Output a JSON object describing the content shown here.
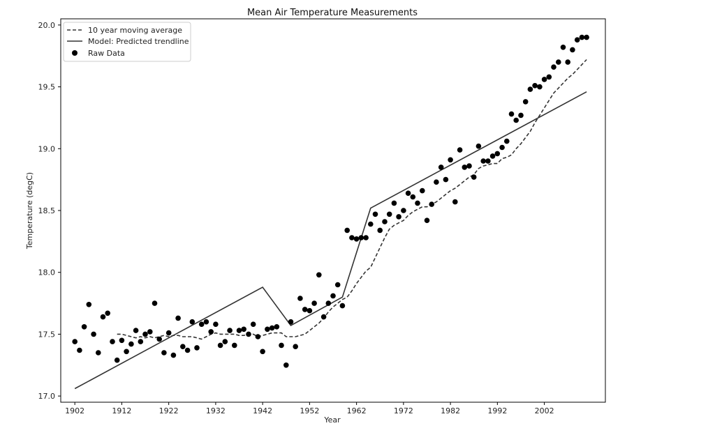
{
  "chart_data": {
    "type": "line",
    "title": "Mean Air Temperature Measurements",
    "xlabel": "Year",
    "ylabel": "Temperature (degC)",
    "xlim": [
      1899,
      2015
    ],
    "ylim": [
      16.95,
      20.05
    ],
    "xticks": [
      1902,
      1912,
      1922,
      1932,
      1942,
      1952,
      1962,
      1972,
      1982,
      1992,
      2002
    ],
    "yticks": [
      17.0,
      17.5,
      18.0,
      18.5,
      19.0,
      19.5,
      20.0
    ],
    "ytick_labels": [
      "17.0",
      "17.5",
      "18.0",
      "18.5",
      "19.0",
      "19.5",
      "20.0"
    ],
    "grid": false,
    "legend_position": "top-left",
    "colors": {
      "lines": "#333333",
      "points": "#000000",
      "axes": "#000000"
    },
    "series": [
      {
        "name": "10 year moving average",
        "style": "dashed",
        "x": [
          1911,
          1912,
          1913,
          1914,
          1915,
          1916,
          1917,
          1918,
          1919,
          1920,
          1921,
          1922,
          1923,
          1924,
          1925,
          1926,
          1927,
          1928,
          1929,
          1930,
          1931,
          1932,
          1933,
          1934,
          1935,
          1936,
          1937,
          1938,
          1939,
          1940,
          1941,
          1942,
          1943,
          1944,
          1945,
          1946,
          1947,
          1948,
          1949,
          1950,
          1951,
          1952,
          1953,
          1954,
          1955,
          1956,
          1957,
          1958,
          1959,
          1960,
          1961,
          1962,
          1963,
          1964,
          1965,
          1966,
          1967,
          1968,
          1969,
          1970,
          1971,
          1972,
          1973,
          1974,
          1975,
          1976,
          1977,
          1978,
          1979,
          1980,
          1981,
          1982,
          1983,
          1984,
          1985,
          1986,
          1987,
          1988,
          1989,
          1990,
          1991,
          1992,
          1993,
          1994,
          1995,
          1996,
          1997,
          1998,
          1999,
          2000,
          2001,
          2002,
          2003,
          2004,
          2005,
          2006,
          2007,
          2008,
          2009,
          2010,
          2011
        ],
        "y": [
          17.5,
          17.5,
          17.49,
          17.48,
          17.47,
          17.48,
          17.47,
          17.48,
          17.47,
          17.48,
          17.49,
          17.48,
          17.49,
          17.49,
          17.48,
          17.48,
          17.48,
          17.47,
          17.46,
          17.48,
          17.5,
          17.51,
          17.5,
          17.5,
          17.5,
          17.5,
          17.49,
          17.49,
          17.5,
          17.5,
          17.48,
          17.49,
          17.5,
          17.51,
          17.51,
          17.51,
          17.48,
          17.48,
          17.48,
          17.49,
          17.5,
          17.53,
          17.56,
          17.59,
          17.63,
          17.68,
          17.72,
          17.75,
          17.78,
          17.8,
          17.85,
          17.91,
          17.96,
          18.01,
          18.04,
          18.12,
          18.2,
          18.28,
          18.35,
          18.38,
          18.4,
          18.42,
          18.46,
          18.49,
          18.51,
          18.53,
          18.53,
          18.55,
          18.57,
          18.6,
          18.63,
          18.66,
          18.68,
          18.71,
          18.74,
          18.77,
          18.79,
          18.84,
          18.86,
          18.87,
          18.88,
          18.88,
          18.92,
          18.93,
          18.95,
          19.0,
          19.04,
          19.09,
          19.14,
          19.21,
          19.27,
          19.33,
          19.39,
          19.45,
          19.49,
          19.53,
          19.57,
          19.6,
          19.64,
          19.68,
          19.72
        ]
      },
      {
        "name": "Model: Predicted trendline",
        "style": "solid",
        "x": [
          1902,
          1942,
          1948,
          1959,
          1965,
          2011
        ],
        "y": [
          17.06,
          17.88,
          17.57,
          17.8,
          18.52,
          19.46
        ]
      },
      {
        "name": "Raw Data",
        "style": "points",
        "x": [
          1902,
          1903,
          1904,
          1905,
          1906,
          1907,
          1908,
          1909,
          1910,
          1911,
          1912,
          1913,
          1914,
          1915,
          1916,
          1917,
          1918,
          1919,
          1920,
          1921,
          1922,
          1923,
          1924,
          1925,
          1926,
          1927,
          1928,
          1929,
          1930,
          1931,
          1932,
          1933,
          1934,
          1935,
          1936,
          1937,
          1938,
          1939,
          1940,
          1941,
          1942,
          1943,
          1944,
          1945,
          1946,
          1947,
          1948,
          1949,
          1950,
          1951,
          1952,
          1953,
          1954,
          1955,
          1956,
          1957,
          1958,
          1959,
          1960,
          1961,
          1962,
          1963,
          1964,
          1965,
          1966,
          1967,
          1968,
          1969,
          1970,
          1971,
          1972,
          1973,
          1974,
          1975,
          1976,
          1977,
          1978,
          1979,
          1980,
          1981,
          1982,
          1983,
          1984,
          1985,
          1986,
          1987,
          1988,
          1989,
          1990,
          1991,
          1992,
          1993,
          1994,
          1995,
          1996,
          1997,
          1998,
          1999,
          2000,
          2001,
          2002,
          2003,
          2004,
          2005,
          2006,
          2007,
          2008,
          2009,
          2010,
          2011
        ],
        "y": [
          17.44,
          17.37,
          17.56,
          17.74,
          17.5,
          17.35,
          17.64,
          17.67,
          17.44,
          17.29,
          17.45,
          17.36,
          17.42,
          17.53,
          17.44,
          17.5,
          17.52,
          17.75,
          17.46,
          17.35,
          17.51,
          17.33,
          17.63,
          17.4,
          17.37,
          17.6,
          17.39,
          17.58,
          17.6,
          17.52,
          17.58,
          17.41,
          17.44,
          17.53,
          17.41,
          17.53,
          17.54,
          17.5,
          17.58,
          17.48,
          17.36,
          17.54,
          17.55,
          17.56,
          17.41,
          17.25,
          17.6,
          17.4,
          17.79,
          17.7,
          17.69,
          17.75,
          17.98,
          17.64,
          17.75,
          17.81,
          17.9,
          17.73,
          18.34,
          18.28,
          18.27,
          18.28,
          18.28,
          18.39,
          18.47,
          18.34,
          18.41,
          18.47,
          18.56,
          18.45,
          18.5,
          18.64,
          18.61,
          18.56,
          18.66,
          18.42,
          18.55,
          18.73,
          18.85,
          18.75,
          18.91,
          18.57,
          18.99,
          18.85,
          18.86,
          18.77,
          19.02,
          18.9,
          18.9,
          18.94,
          18.96,
          19.01,
          19.06,
          19.28,
          19.23,
          19.27,
          19.38,
          19.48,
          19.51,
          19.5,
          19.56,
          19.58,
          19.66,
          19.7,
          19.82,
          19.7,
          19.8,
          19.88,
          19.9,
          19.9
        ]
      }
    ]
  }
}
